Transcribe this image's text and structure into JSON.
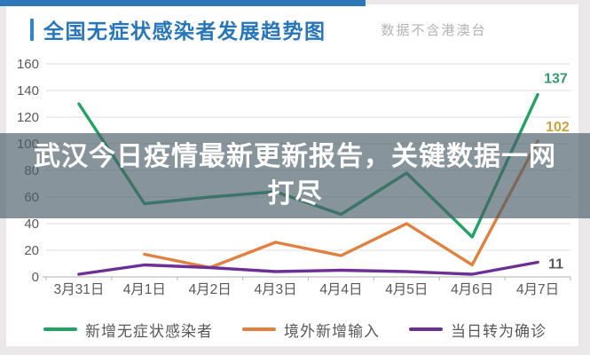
{
  "header": {
    "subtitle": "数据不含港澳台"
  },
  "overlay": {
    "text": "武汉今日疫情最新更新报告，关键数据一网打尽"
  },
  "chart_data": {
    "type": "line",
    "title": "全国无症状感染者发展趋势图",
    "subtitle": "数据不含港澳台",
    "categories": [
      "3月31日",
      "4月1日",
      "4月2日",
      "4月3日",
      "4月4日",
      "4月5日",
      "4月6日",
      "4月7日"
    ],
    "series": [
      {
        "name": "新增无症状感染者",
        "color": "#23a263",
        "values": [
          130,
          55,
          60,
          64,
          47,
          78,
          30,
          137
        ],
        "end_label": "137",
        "end_label_color": "#339a68"
      },
      {
        "name": "境外新增输入",
        "color": "#e0813f",
        "values": [
          null,
          17,
          7,
          26,
          16,
          40,
          9,
          102
        ],
        "end_label": "102",
        "end_label_color": "#d2a23c"
      },
      {
        "name": "当日转为确诊",
        "color": "#6c3095",
        "values": [
          2,
          9,
          7,
          4,
          5,
          4,
          2,
          11
        ],
        "end_label": "11",
        "end_label_color": "#5b5660"
      }
    ],
    "ylim": [
      0,
      160
    ],
    "ytick_step": 20,
    "yticks": [
      "0",
      "20",
      "40",
      "60",
      "80",
      "100",
      "120",
      "140",
      "160"
    ],
    "grid": true,
    "legend_position": "bottom"
  },
  "style_colors": {
    "accent_bar": "#2f78b8",
    "title": "#2776bc",
    "gridline": "#dcdcdc",
    "axis_line": "#bfbfbf",
    "axis_text": "#595959",
    "banner": "rgba(73,92,104,0.66)"
  }
}
